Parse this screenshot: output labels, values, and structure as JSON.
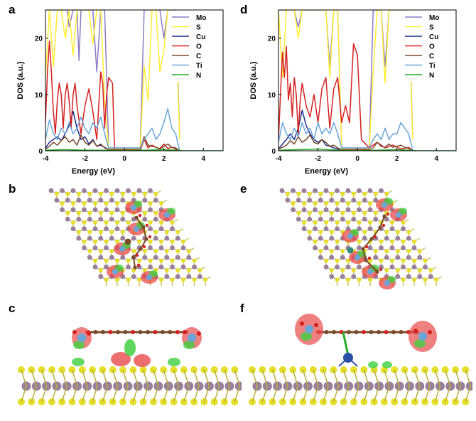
{
  "panels": {
    "a": "a",
    "b": "b",
    "c": "c",
    "d": "d",
    "e": "e",
    "f": "f"
  },
  "colors": {
    "Mo": "#8e7cc3",
    "S": "#ffee33",
    "Cu": "#1a2b8c",
    "O": "#d42020",
    "C": "#7a4a2a",
    "Ti": "#6aa5d8",
    "N": "#22aa22",
    "lattice_mo": "#9a7f9a",
    "lattice_s": "#e6df2a",
    "iso_red": "#e84a4a",
    "iso_green": "#3fcf3f"
  },
  "chart_data": [
    {
      "type": "line",
      "panel": "a",
      "xlabel": "Energy (eV)",
      "ylabel": "DOS (a.u.)",
      "xlim": [
        -4,
        5
      ],
      "ylim": [
        0,
        25
      ],
      "xticks": [
        -4,
        -2,
        0,
        2,
        4
      ],
      "yticks": [
        0,
        10,
        20
      ],
      "legend_position": "top-right",
      "series": [
        {
          "name": "Mo",
          "color_key": "Mo",
          "x": [
            -4,
            -3.8,
            -3.6,
            -3.4,
            -3.2,
            -3.0,
            -2.9,
            -2.8,
            -2.6,
            -2.4,
            -2.3,
            -2.2,
            -2.0,
            -1.8,
            -1.6,
            -1.4,
            -1.2,
            -1.0,
            -0.8,
            0.8,
            1.0,
            1.2,
            1.4,
            1.6,
            1.8,
            2.0,
            2.2,
            2.4,
            2.6,
            2.8
          ],
          "y": [
            25,
            25,
            25,
            25,
            25,
            25,
            25,
            22,
            25,
            25,
            16,
            25,
            25,
            25,
            25,
            14,
            25,
            25,
            0.5,
            0.5,
            25,
            25,
            25,
            25,
            25,
            20,
            25,
            25,
            25,
            3
          ]
        },
        {
          "name": "S",
          "color_key": "S",
          "x": [
            -4,
            -3.8,
            -3.6,
            -3.4,
            -3.2,
            -3.0,
            -2.8,
            -2.6,
            -2.4,
            -2.2,
            -2.0,
            -1.8,
            -1.6,
            -1.4,
            -1.2,
            -1.0,
            -0.8,
            0.8,
            1.0,
            1.2,
            1.4,
            1.6,
            1.8,
            2.0,
            2.2,
            2.4,
            2.6,
            2.8
          ],
          "y": [
            13,
            25,
            15,
            25,
            25,
            20,
            25,
            17,
            25,
            25,
            25,
            25,
            19,
            25,
            25,
            9,
            0.3,
            0.3,
            15,
            9,
            25,
            25,
            14,
            18,
            25,
            25,
            23,
            2
          ]
        },
        {
          "name": "Cu",
          "color_key": "Cu",
          "x": [
            -4,
            -3.8,
            -3.6,
            -3.4,
            -3.2,
            -3.0,
            -2.8,
            -2.6,
            -2.4,
            -2.2,
            -2.0,
            -1.8,
            -1.6,
            -1.4,
            -1.2,
            -1.0,
            -0.8,
            -0.6
          ],
          "y": [
            0.5,
            1.5,
            2.0,
            2.5,
            1.8,
            3.0,
            4.5,
            7.0,
            4.0,
            2.0,
            2.5,
            1.2,
            2.0,
            0.8,
            1.0,
            0.6,
            0.2,
            0
          ]
        },
        {
          "name": "O",
          "color_key": "O",
          "x": [
            -4,
            -3.9,
            -3.8,
            -3.7,
            -3.6,
            -3.5,
            -3.4,
            -3.3,
            -3.2,
            -3.1,
            -3.0,
            -2.9,
            -2.8,
            -2.7,
            -2.6,
            -2.5,
            -2.4,
            -2.2,
            -2.0,
            -1.8,
            -1.6,
            -1.4,
            -1.2,
            -1.1,
            -1.0,
            -0.9,
            -0.8,
            -0.6,
            -0.5,
            0.8,
            1.0,
            1.2,
            1.4,
            1.6,
            1.8,
            2.0,
            2.2,
            2.4,
            2.6,
            2.8
          ],
          "y": [
            5,
            14,
            19.5,
            14,
            7,
            3,
            9,
            12,
            10,
            4,
            10,
            12,
            9,
            4,
            10,
            12,
            8,
            3,
            8,
            11,
            7,
            2,
            14,
            12,
            4,
            10,
            13,
            12,
            0,
            0,
            2,
            0.5,
            1,
            0.6,
            0.4,
            1.2,
            0.4,
            0.6,
            0.3,
            0
          ]
        },
        {
          "name": "C",
          "color_key": "C",
          "x": [
            -4,
            -3.8,
            -3.6,
            -3.4,
            -3.2,
            -3.0,
            -2.8,
            -2.6,
            -2.4,
            -2.2,
            -2.0,
            -1.8,
            -1.6,
            -1.4,
            -1.2,
            -1.0,
            -0.8,
            0.8,
            1.0,
            1.2,
            1.4,
            1.6,
            1.8,
            2.0,
            2.2,
            2.4,
            2.6,
            2.8
          ],
          "y": [
            0.3,
            0.8,
            1.5,
            1.0,
            1.8,
            2.5,
            1.5,
            2.0,
            1.0,
            2.8,
            1.5,
            1.0,
            1.8,
            0.8,
            1.2,
            0.5,
            0.2,
            0.2,
            2.5,
            1.0,
            0.8,
            0.6,
            0.3,
            0.8,
            1.2,
            0.6,
            0.5,
            0
          ]
        },
        {
          "name": "Ti",
          "color_key": "Ti",
          "x": [
            -4,
            -3.8,
            -3.6,
            -3.4,
            -3.2,
            -3.0,
            -2.8,
            -2.6,
            -2.4,
            -2.2,
            -2.0,
            -1.8,
            -1.6,
            -1.4,
            -1.2,
            -1.0,
            -0.8,
            0.8,
            1.0,
            1.2,
            1.4,
            1.6,
            1.8,
            2.0,
            2.2,
            2.4,
            2.6,
            2.8
          ],
          "y": [
            2,
            5.5,
            3,
            2,
            4,
            3,
            5,
            3,
            4,
            6,
            4,
            3,
            5,
            4,
            6,
            3,
            0.5,
            0.5,
            2,
            3,
            4,
            2,
            3,
            5,
            7.5,
            4,
            3,
            0
          ]
        },
        {
          "name": "N",
          "color_key": "N",
          "x": [
            -4,
            -3,
            -2,
            -1,
            0,
            1,
            2,
            3,
            5
          ],
          "y": [
            0.1,
            0.2,
            0.1,
            0.1,
            0,
            0.1,
            0.2,
            0,
            0
          ]
        }
      ]
    },
    {
      "type": "line",
      "panel": "d",
      "xlabel": "Energy (eV)",
      "ylabel": "DOS (a.u.)",
      "xlim": [
        -4,
        5
      ],
      "ylim": [
        0,
        25
      ],
      "xticks": [
        -4,
        -2,
        0,
        2,
        4
      ],
      "yticks": [
        0,
        10,
        20
      ],
      "legend_position": "top-right",
      "series": [
        {
          "name": "Mo",
          "color_key": "Mo",
          "x": [
            -4,
            -3.8,
            -3.6,
            -3.4,
            -3.2,
            -3.0,
            -2.8,
            -2.6,
            -2.4,
            -2.2,
            -2.0,
            -1.8,
            -1.6,
            -1.4,
            -1.2,
            -1.0,
            -0.8,
            0.6,
            0.8,
            1.0,
            1.2,
            1.4,
            1.6,
            1.8,
            2.0,
            2.2,
            2.4,
            2.6,
            2.8
          ],
          "y": [
            25,
            25,
            25,
            25,
            25,
            22,
            25,
            25,
            25,
            25,
            25,
            25,
            25,
            15,
            25,
            25,
            0.5,
            0.5,
            25,
            25,
            25,
            15,
            25,
            25,
            25,
            25,
            25,
            25,
            3
          ]
        },
        {
          "name": "S",
          "color_key": "S",
          "x": [
            -4,
            -3.8,
            -3.6,
            -3.4,
            -3.2,
            -3.0,
            -2.8,
            -2.6,
            -2.4,
            -2.2,
            -2.0,
            -1.8,
            -1.6,
            -1.4,
            -1.2,
            -1.0,
            -0.8,
            0.6,
            0.8,
            1.0,
            1.2,
            1.4,
            1.6,
            1.8,
            2.0,
            2.2,
            2.4,
            2.6,
            2.8
          ],
          "y": [
            25,
            13,
            25,
            25,
            25,
            20,
            25,
            25,
            25,
            25,
            25,
            25,
            25,
            13,
            25,
            25,
            0.3,
            0.3,
            14,
            25,
            25,
            12,
            25,
            25,
            25,
            25,
            25,
            25,
            2
          ]
        },
        {
          "name": "Cu",
          "color_key": "Cu",
          "x": [
            -4,
            -3.8,
            -3.6,
            -3.4,
            -3.2,
            -3.0,
            -2.8,
            -2.6,
            -2.4,
            -2.2,
            -2.0,
            -1.8,
            -1.6,
            -1.4,
            -1.2,
            -1.0,
            -0.8,
            -0.6
          ],
          "y": [
            0.3,
            1.2,
            2.0,
            3.0,
            2.0,
            4.0,
            7.2,
            4.5,
            3.0,
            2.0,
            1.5,
            2.0,
            1.0,
            0.8,
            0.5,
            0.3,
            0.2,
            0
          ]
        },
        {
          "name": "O",
          "color_key": "O",
          "x": [
            -4,
            -3.9,
            -3.8,
            -3.7,
            -3.6,
            -3.5,
            -3.4,
            -3.3,
            -3.2,
            -3.1,
            -3.0,
            -2.9,
            -2.8,
            -2.6,
            -2.4,
            -2.2,
            -2.0,
            -1.8,
            -1.6,
            -1.4,
            -1.2,
            -1.0,
            -0.8,
            -0.6,
            -0.4,
            -0.2,
            0.0,
            0.2,
            0.6,
            1.0,
            1.4,
            1.8,
            2.2,
            2.6,
            2.8
          ],
          "y": [
            2,
            10,
            17.5,
            13,
            18.5,
            9,
            12,
            6,
            13,
            10,
            3,
            9,
            12,
            8,
            6,
            10,
            5,
            11,
            13,
            4,
            11,
            13,
            5,
            8,
            5,
            19,
            17,
            2,
            0.5,
            1.5,
            0.5,
            1,
            0.3,
            0.6,
            0
          ]
        },
        {
          "name": "C",
          "color_key": "C",
          "x": [
            -4,
            -3.8,
            -3.6,
            -3.4,
            -3.2,
            -3.0,
            -2.8,
            -2.6,
            -2.4,
            -2.2,
            -2.0,
            -1.8,
            -1.6,
            -1.4,
            -1.2,
            -1.0,
            -0.8,
            0.6,
            0.8,
            1.0,
            1.2,
            1.4,
            1.6,
            1.8,
            2.0,
            2.2,
            2.4,
            2.6,
            2.8
          ],
          "y": [
            0.3,
            0.6,
            1.0,
            1.8,
            1.2,
            2.5,
            1.5,
            2.0,
            2.8,
            1.5,
            1.2,
            2.0,
            1.5,
            0.8,
            1.0,
            0.5,
            0.2,
            0.2,
            0.5,
            1.5,
            0.8,
            0.6,
            1.2,
            0.6,
            0.8,
            1.0,
            0.6,
            0.4,
            0
          ]
        },
        {
          "name": "Ti",
          "color_key": "Ti",
          "x": [
            -4,
            -3.8,
            -3.6,
            -3.4,
            -3.2,
            -3.0,
            -2.8,
            -2.6,
            -2.4,
            -2.2,
            -2.0,
            -1.8,
            -1.6,
            -1.4,
            -1.2,
            -1.0,
            -0.8,
            0.6,
            0.8,
            1.0,
            1.2,
            1.4,
            1.6,
            1.8,
            2.0,
            2.2,
            2.4,
            2.6,
            2.8
          ],
          "y": [
            1.5,
            5,
            3,
            2,
            4,
            2.5,
            5,
            3,
            4,
            2,
            5,
            3,
            4,
            3,
            5,
            3,
            0.5,
            0.5,
            2,
            3,
            2,
            4,
            2,
            3,
            3,
            5,
            4,
            3,
            0
          ]
        },
        {
          "name": "N",
          "color_key": "N",
          "x": [
            -4,
            -3,
            -2,
            -1,
            0,
            1,
            2,
            3,
            5
          ],
          "y": [
            0.1,
            0.2,
            0.3,
            0.1,
            0,
            0.1,
            0.2,
            0,
            0
          ]
        }
      ]
    }
  ]
}
